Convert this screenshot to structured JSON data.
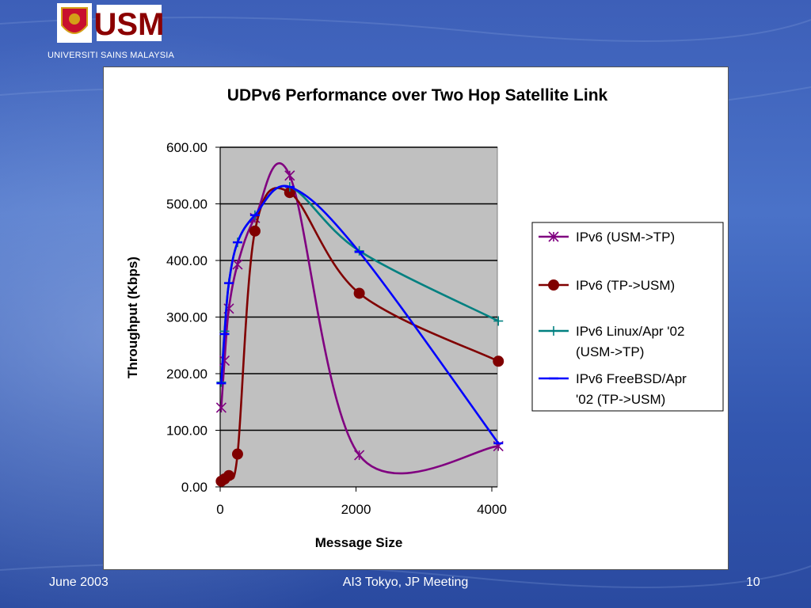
{
  "header": {
    "logo_text": "USM",
    "university_name": "UNIVERSITI SAINS MALAYSIA"
  },
  "footer": {
    "date": "June 2003",
    "event": "AI3 Tokyo, JP Meeting",
    "page_number": "10"
  },
  "colors": {
    "plot_background": "#c0c0c0",
    "series_usm_tp": "#800080",
    "series_tp_usm": "#800000",
    "series_linux": "#008080",
    "series_freebsd": "#0000ff"
  },
  "chart_data": {
    "type": "line",
    "title": "UDPv6 Performance over Two Hop Satellite Link",
    "xlabel": "Message Size",
    "ylabel": "Throughput (Kbps)",
    "xlim": [
      0,
      4096
    ],
    "ylim": [
      0,
      600
    ],
    "x_ticks": [
      0,
      2000,
      4000
    ],
    "x_tick_labels": [
      "0",
      "2000",
      "4000"
    ],
    "y_ticks": [
      0,
      100,
      200,
      300,
      400,
      500,
      600
    ],
    "y_tick_labels": [
      "0.00",
      "100.00",
      "200.00",
      "300.00",
      "400.00",
      "500.00",
      "600.00"
    ],
    "grid": "horizontal",
    "legend_position": "right",
    "series": [
      {
        "name": "IPv6 (USM->TP)",
        "color": "#800080",
        "marker": "star",
        "x": [
          16,
          64,
          128,
          256,
          512,
          1024,
          2048,
          4096
        ],
        "y": [
          140,
          223,
          315,
          393,
          475,
          550,
          56,
          72
        ]
      },
      {
        "name": "IPv6 (TP->USM)",
        "color": "#800000",
        "marker": "circle",
        "x": [
          16,
          64,
          128,
          256,
          512,
          1024,
          2048,
          4096
        ],
        "y": [
          10,
          14,
          20,
          58,
          452,
          520,
          342,
          222
        ]
      },
      {
        "name": "IPv6 Linux/Apr '02 (USM->TP)",
        "color": "#008080",
        "marker": "plus",
        "x": [
          16,
          64,
          128,
          256,
          512,
          1024,
          2048,
          4096
        ],
        "y": [
          185,
          275,
          360,
          432,
          480,
          530,
          417,
          293
        ]
      },
      {
        "name": "IPv6 FreeBSD/Apr '02 (TP->USM)",
        "color": "#0000ff",
        "marker": "dash",
        "x": [
          16,
          64,
          128,
          256,
          512,
          1024,
          2048,
          4096
        ],
        "y": [
          183,
          270,
          360,
          432,
          480,
          530,
          415,
          77
        ]
      }
    ]
  }
}
